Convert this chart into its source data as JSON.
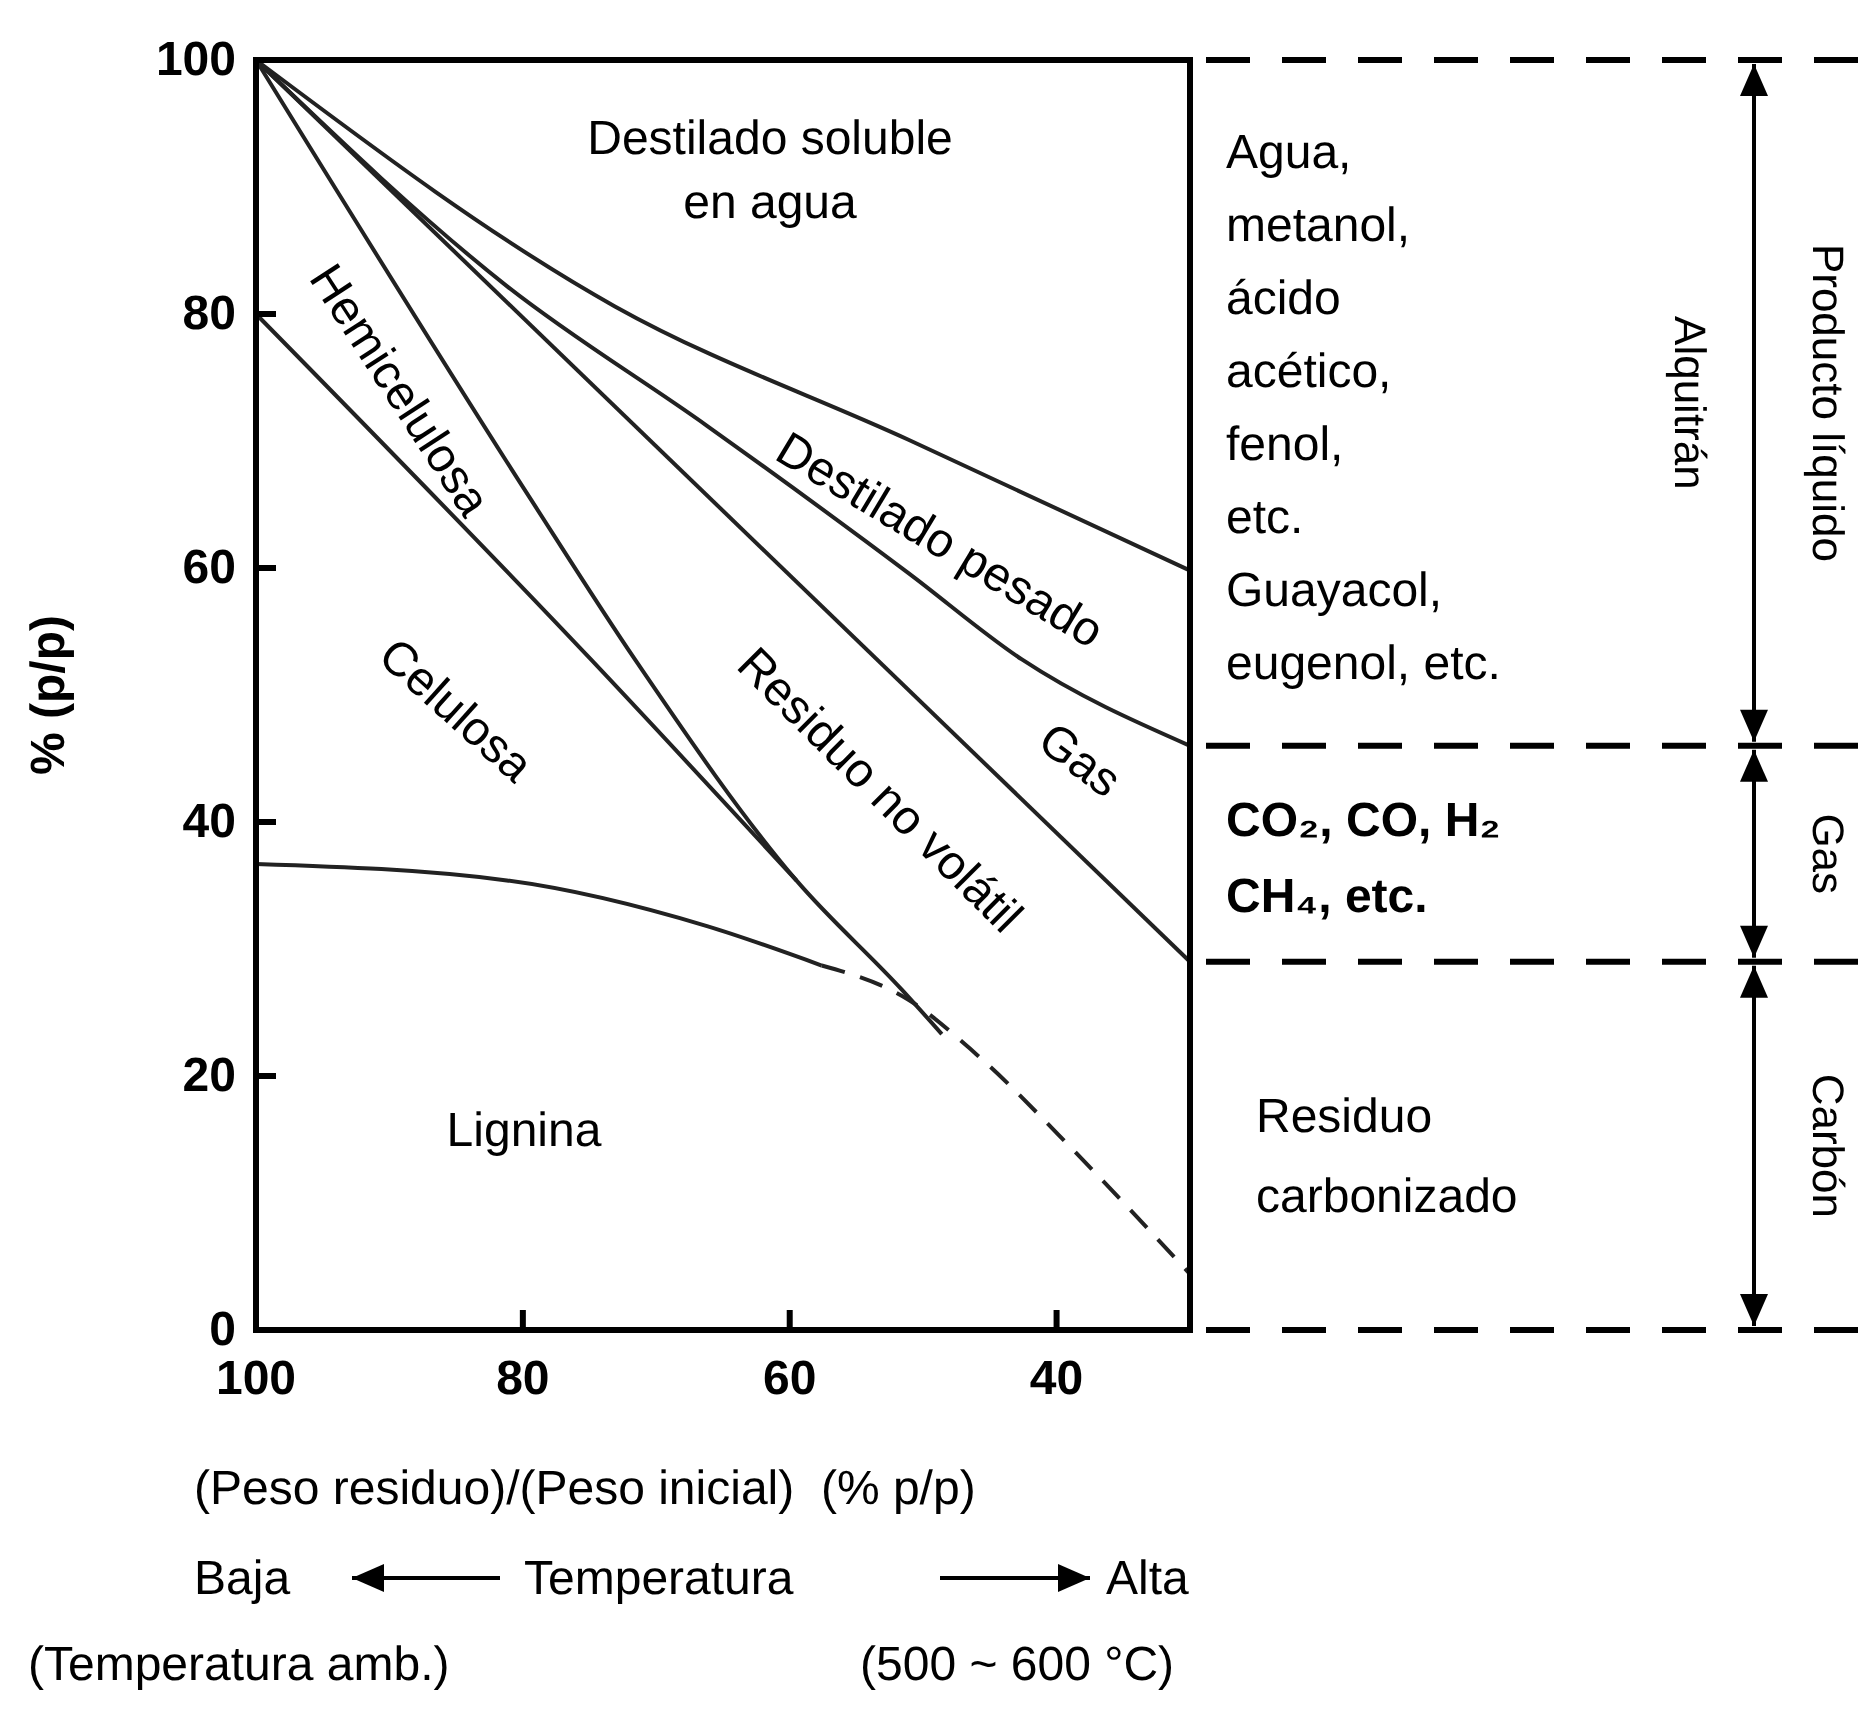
{
  "chart_data": {
    "type": "line",
    "xlabel": "(Peso residuo)/(Peso inicial)  (% p/p)",
    "ylabel": "% (p/p)",
    "xlim": [
      100,
      30
    ],
    "xticks": [
      100,
      80,
      60,
      40
    ],
    "ylim": [
      0,
      100
    ],
    "yticks": [
      0,
      20,
      40,
      60,
      80,
      100
    ],
    "grid": false,
    "marker": "none",
    "series": [
      {
        "color": "#222222",
        "x": [
          100,
          73.1,
          51.1,
          30
        ],
        "values": [
          100,
          80.6,
          70.1,
          59.8
        ]
      },
      {
        "color": "#222222",
        "x": [
          100,
          81.2,
          66.2,
          51.1,
          42.6,
          30
        ],
        "values": [
          100,
          82.2,
          71.2,
          59.6,
          52.8,
          46
        ]
      },
      {
        "color": "#222222",
        "x": [
          100,
          30
        ],
        "values": [
          100,
          29
        ]
      },
      {
        "color": "#222222",
        "x": [
          100,
          79.4,
          71.6,
          59.5,
          51.6,
          48.6
        ],
        "values": [
          100,
          65.4,
          52.8,
          35.4,
          26.8,
          23.3
        ]
      },
      {
        "color": "#222222",
        "x": [
          100,
          74.9,
          59.5
        ],
        "values": [
          80,
          52.8,
          35.4
        ]
      },
      {
        "color": "#222222",
        "x": [
          100,
          81.2,
          66.2,
          57.6
        ],
        "values": [
          36.7,
          35.4,
          31.8,
          28.7
        ]
      },
      {
        "color": "#222222",
        "line_style": "dashed",
        "x": [
          57.6,
          51.1,
          46,
          38.5,
          30
        ],
        "values": [
          28.7,
          26,
          21.7,
          13.9,
          4.4
        ]
      }
    ],
    "annotations": [
      "Destilado soluble\nen agua",
      "Hemicelulosa",
      "Celulosa",
      "Destilado pesado",
      "Residuo no volátil",
      "Gas",
      "Lignina",
      "Agua,\nmetanol,\nácido\nacético,\nfenol,\netc.\nGuayacol,\neugenol, etc.",
      "CO₂, CO, H₂\nCH₄, etc.",
      "Residuo\ncarbonizado",
      "Baja",
      "Temperatura",
      "Alta",
      "(Temperatura amb.)",
      "(500 ~ 600 °C)",
      "Alquitrán",
      "Gas",
      "Carbón",
      "Producto líquido"
    ]
  }
}
